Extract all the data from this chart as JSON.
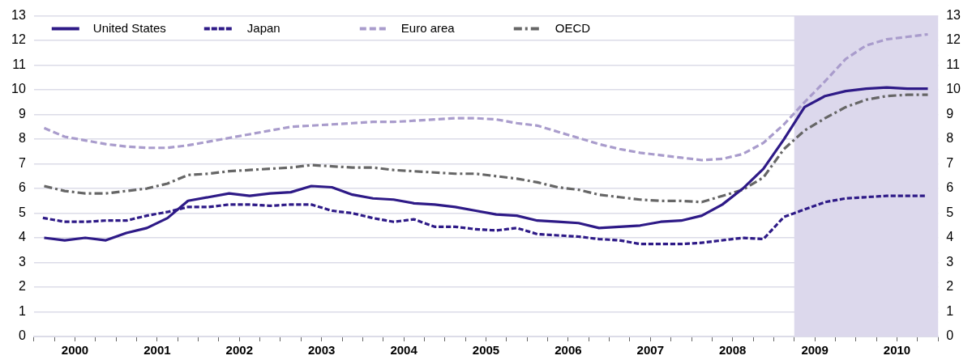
{
  "chart_data": {
    "type": "line",
    "x": [
      2000.125,
      2000.375,
      2000.625,
      2000.875,
      2001.125,
      2001.375,
      2001.625,
      2001.875,
      2002.125,
      2002.375,
      2002.625,
      2002.875,
      2003.125,
      2003.375,
      2003.625,
      2003.875,
      2004.125,
      2004.375,
      2004.625,
      2004.875,
      2005.125,
      2005.375,
      2005.625,
      2005.875,
      2006.125,
      2006.375,
      2006.625,
      2006.875,
      2007.125,
      2007.375,
      2007.625,
      2007.875,
      2008.125,
      2008.375,
      2008.625,
      2008.875,
      2009.125,
      2009.375,
      2009.625,
      2009.875,
      2010.125,
      2010.375,
      2010.625,
      2010.875
    ],
    "series": [
      {
        "name": "United States",
        "color": "#2e1a87",
        "line_style": "solid",
        "values": [
          4.0,
          3.9,
          4.0,
          3.9,
          4.2,
          4.4,
          4.8,
          5.5,
          5.65,
          5.8,
          5.7,
          5.8,
          5.85,
          6.1,
          6.05,
          5.75,
          5.6,
          5.55,
          5.4,
          5.35,
          5.25,
          5.1,
          4.95,
          4.9,
          4.7,
          4.65,
          4.6,
          4.4,
          4.45,
          4.5,
          4.65,
          4.7,
          4.9,
          5.35,
          6.0,
          6.8,
          8.0,
          9.3,
          9.75,
          9.95,
          10.05,
          10.1,
          10.05,
          10.05
        ]
      },
      {
        "name": "Japan",
        "color": "#2e1a87",
        "line_style": "dotted",
        "values": [
          4.8,
          4.65,
          4.65,
          4.7,
          4.7,
          4.9,
          5.05,
          5.25,
          5.25,
          5.35,
          5.35,
          5.3,
          5.35,
          5.35,
          5.1,
          5.0,
          4.8,
          4.65,
          4.75,
          4.45,
          4.45,
          4.35,
          4.3,
          4.4,
          4.15,
          4.1,
          4.05,
          3.95,
          3.9,
          3.75,
          3.75,
          3.75,
          3.8,
          3.9,
          4.0,
          3.95,
          4.85,
          5.15,
          5.45,
          5.6,
          5.65,
          5.7,
          5.7,
          5.7
        ]
      },
      {
        "name": "Euro area",
        "color": "#a99ccc",
        "line_style": "dashed",
        "values": [
          8.45,
          8.1,
          7.95,
          7.8,
          7.7,
          7.65,
          7.65,
          7.75,
          7.9,
          8.05,
          8.2,
          8.35,
          8.5,
          8.55,
          8.6,
          8.65,
          8.7,
          8.7,
          8.75,
          8.8,
          8.85,
          8.85,
          8.8,
          8.65,
          8.55,
          8.3,
          8.05,
          7.8,
          7.6,
          7.45,
          7.35,
          7.25,
          7.15,
          7.2,
          7.4,
          7.85,
          8.6,
          9.5,
          10.35,
          11.25,
          11.8,
          12.05,
          12.15,
          12.25
        ]
      },
      {
        "name": "OECD",
        "color": "#666666",
        "line_style": "dashdot",
        "values": [
          6.1,
          5.9,
          5.8,
          5.8,
          5.9,
          6.0,
          6.2,
          6.55,
          6.6,
          6.7,
          6.75,
          6.8,
          6.85,
          6.95,
          6.9,
          6.85,
          6.85,
          6.75,
          6.7,
          6.65,
          6.6,
          6.6,
          6.5,
          6.4,
          6.25,
          6.05,
          5.95,
          5.75,
          5.65,
          5.55,
          5.5,
          5.5,
          5.45,
          5.7,
          5.95,
          6.45,
          7.6,
          8.35,
          8.85,
          9.3,
          9.6,
          9.75,
          9.8,
          9.8
        ]
      }
    ],
    "xlim": [
      2000,
      2011
    ],
    "xticks": [
      {
        "value": 2000,
        "label": null
      },
      {
        "value": 2000.25,
        "label": null
      },
      {
        "value": 2000.5,
        "label": "2000"
      },
      {
        "value": 2000.75,
        "label": null
      },
      {
        "value": 2001,
        "label": null
      },
      {
        "value": 2001.25,
        "label": null
      },
      {
        "value": 2001.5,
        "label": "2001"
      },
      {
        "value": 2001.75,
        "label": null
      },
      {
        "value": 2002,
        "label": null
      },
      {
        "value": 2002.25,
        "label": null
      },
      {
        "value": 2002.5,
        "label": "2002"
      },
      {
        "value": 2002.75,
        "label": null
      },
      {
        "value": 2003,
        "label": null
      },
      {
        "value": 2003.25,
        "label": null
      },
      {
        "value": 2003.5,
        "label": "2003"
      },
      {
        "value": 2003.75,
        "label": null
      },
      {
        "value": 2004,
        "label": null
      },
      {
        "value": 2004.25,
        "label": null
      },
      {
        "value": 2004.5,
        "label": "2004"
      },
      {
        "value": 2004.75,
        "label": null
      },
      {
        "value": 2005,
        "label": null
      },
      {
        "value": 2005.25,
        "label": null
      },
      {
        "value": 2005.5,
        "label": "2005"
      },
      {
        "value": 2005.75,
        "label": null
      },
      {
        "value": 2006,
        "label": null
      },
      {
        "value": 2006.25,
        "label": null
      },
      {
        "value": 2006.5,
        "label": "2006"
      },
      {
        "value": 2006.75,
        "label": null
      },
      {
        "value": 2007,
        "label": null
      },
      {
        "value": 2007.25,
        "label": null
      },
      {
        "value": 2007.5,
        "label": "2007"
      },
      {
        "value": 2007.75,
        "label": null
      },
      {
        "value": 2008,
        "label": null
      },
      {
        "value": 2008.25,
        "label": null
      },
      {
        "value": 2008.5,
        "label": "2008"
      },
      {
        "value": 2008.75,
        "label": null
      },
      {
        "value": 2009,
        "label": null
      },
      {
        "value": 2009.25,
        "label": null
      },
      {
        "value": 2009.5,
        "label": "2009"
      },
      {
        "value": 2009.75,
        "label": null
      },
      {
        "value": 2010,
        "label": null
      },
      {
        "value": 2010.25,
        "label": null
      },
      {
        "value": 2010.5,
        "label": "2010"
      },
      {
        "value": 2010.75,
        "label": null
      },
      {
        "value": 2011,
        "label": null
      }
    ],
    "ylim": [
      0,
      13
    ],
    "yticks": [
      0,
      1,
      2,
      3,
      4,
      5,
      6,
      7,
      8,
      9,
      10,
      11,
      12,
      13
    ],
    "y2lim": [
      0,
      13
    ],
    "y2ticks": [
      0,
      1,
      2,
      3,
      4,
      5,
      6,
      7,
      8,
      9,
      10,
      11,
      12,
      13
    ],
    "bands": [
      {
        "axis": "x",
        "from": 2009.25,
        "to": 2011,
        "color": "#dcd8ec"
      }
    ],
    "grid": "y",
    "legend": "top left",
    "marker": "none"
  }
}
